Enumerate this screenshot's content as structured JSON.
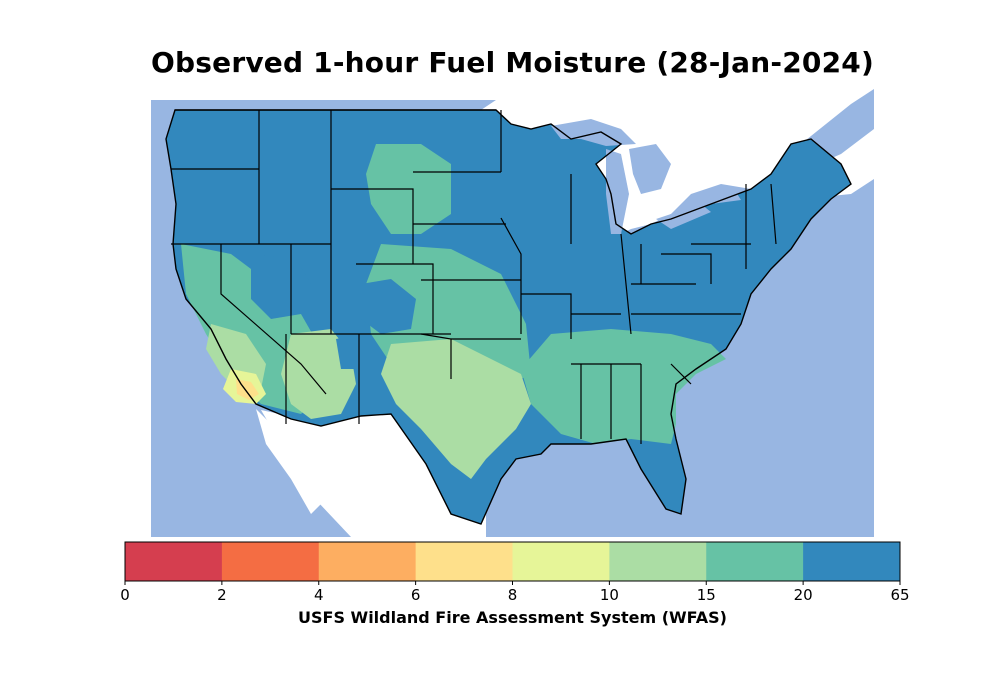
{
  "title": "Observed 1-hour Fuel Moisture (28-Jan-2024)",
  "colorbar": {
    "label": "USFS Wildland Fire Assessment System (WFAS)",
    "ticks": [
      "0",
      "2",
      "4",
      "6",
      "8",
      "10",
      "15",
      "20",
      "65"
    ],
    "colors": [
      "#d53e4f",
      "#f46d43",
      "#fdae61",
      "#fee08b",
      "#e6f598",
      "#abdda4",
      "#66c2a5",
      "#3288bd"
    ]
  },
  "map": {
    "water_color": "#98b6e2",
    "land_outside_color": "#ffffff",
    "dominant_color": "#3288bd"
  }
}
